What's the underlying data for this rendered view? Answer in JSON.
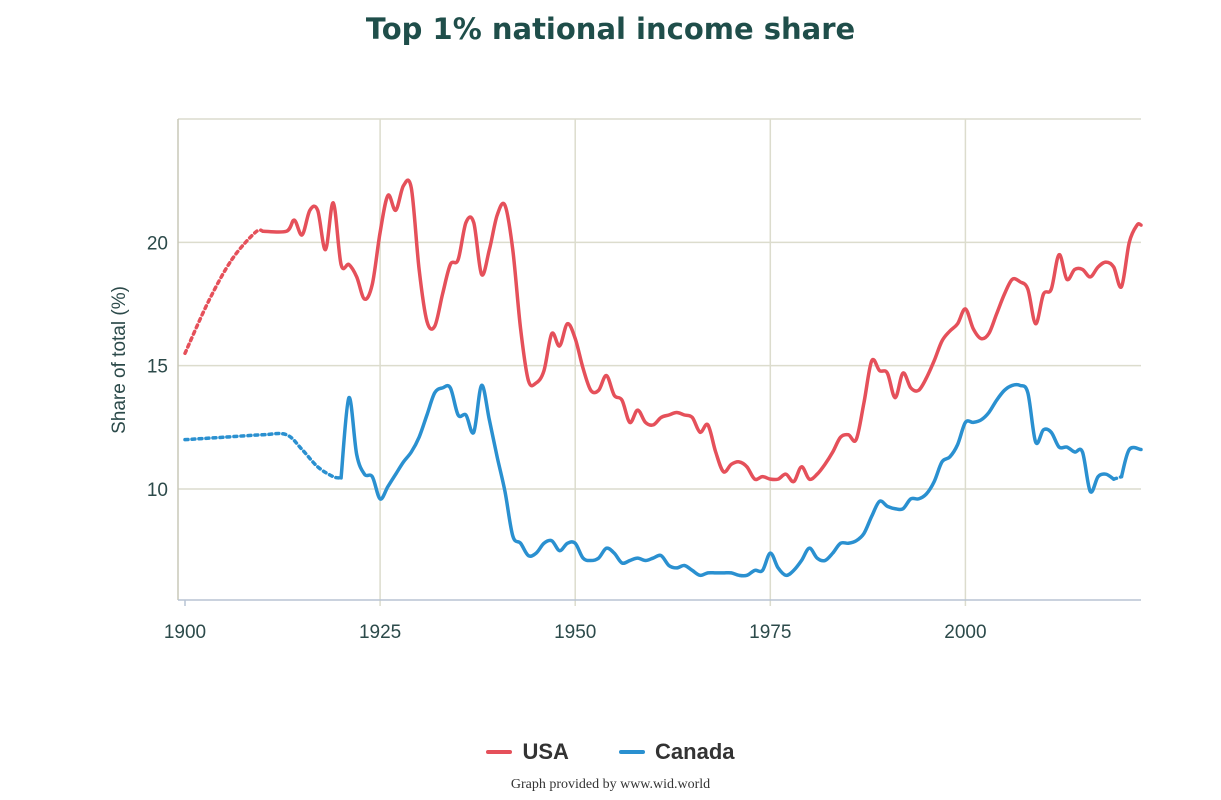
{
  "chart_data": {
    "type": "line",
    "title": "Top 1% national income share",
    "ylabel": "Share of total (%)",
    "xlabel": "",
    "xlim": [
      1900,
      2022.5
    ],
    "ylim": [
      5.5,
      25
    ],
    "x_ticks": [
      "1900",
      "1925",
      "1950",
      "1975",
      "2000"
    ],
    "y_ticks": [
      "10",
      "15",
      "20"
    ],
    "grid": true,
    "legend_position": "bottom-center",
    "series": [
      {
        "name": "USA",
        "color": "#e5505a",
        "interpolated": [
          [
            1900,
            15.5
          ],
          [
            1903,
            17.6
          ],
          [
            1906,
            19.3
          ],
          [
            1909,
            20.4
          ],
          [
            1910,
            20.45
          ]
        ],
        "points": [
          [
            1910,
            20.45
          ],
          [
            1913,
            20.45
          ],
          [
            1914,
            20.9
          ],
          [
            1915,
            20.3
          ],
          [
            1916,
            21.3
          ],
          [
            1917,
            21.3
          ],
          [
            1918,
            19.7
          ],
          [
            1919,
            21.6
          ],
          [
            1920,
            19.1
          ],
          [
            1921,
            19.1
          ],
          [
            1922,
            18.6
          ],
          [
            1923,
            17.7
          ],
          [
            1924,
            18.3
          ],
          [
            1925,
            20.4
          ],
          [
            1926,
            21.9
          ],
          [
            1927,
            21.3
          ],
          [
            1928,
            22.3
          ],
          [
            1929,
            22.2
          ],
          [
            1930,
            18.9
          ],
          [
            1931,
            16.8
          ],
          [
            1932,
            16.6
          ],
          [
            1933,
            17.9
          ],
          [
            1934,
            19.1
          ],
          [
            1935,
            19.3
          ],
          [
            1936,
            20.8
          ],
          [
            1937,
            20.8
          ],
          [
            1938,
            18.7
          ],
          [
            1939,
            19.7
          ],
          [
            1940,
            21.1
          ],
          [
            1941,
            21.5
          ],
          [
            1942,
            19.7
          ],
          [
            1943,
            16.5
          ],
          [
            1944,
            14.4
          ],
          [
            1945,
            14.3
          ],
          [
            1946,
            14.8
          ],
          [
            1947,
            16.3
          ],
          [
            1948,
            15.8
          ],
          [
            1949,
            16.7
          ],
          [
            1950,
            16.1
          ],
          [
            1951,
            14.9
          ],
          [
            1952,
            14.0
          ],
          [
            1953,
            14.0
          ],
          [
            1954,
            14.6
          ],
          [
            1955,
            13.8
          ],
          [
            1956,
            13.6
          ],
          [
            1957,
            12.7
          ],
          [
            1958,
            13.2
          ],
          [
            1959,
            12.7
          ],
          [
            1960,
            12.6
          ],
          [
            1961,
            12.9
          ],
          [
            1962,
            13.0
          ],
          [
            1963,
            13.1
          ],
          [
            1964,
            13.0
          ],
          [
            1965,
            12.9
          ],
          [
            1966,
            12.3
          ],
          [
            1967,
            12.6
          ],
          [
            1968,
            11.5
          ],
          [
            1969,
            10.7
          ],
          [
            1970,
            11.0
          ],
          [
            1971,
            11.1
          ],
          [
            1972,
            10.9
          ],
          [
            1973,
            10.4
          ],
          [
            1974,
            10.5
          ],
          [
            1975,
            10.4
          ],
          [
            1976,
            10.4
          ],
          [
            1977,
            10.6
          ],
          [
            1978,
            10.3
          ],
          [
            1979,
            10.9
          ],
          [
            1980,
            10.4
          ],
          [
            1981,
            10.6
          ],
          [
            1982,
            11.0
          ],
          [
            1983,
            11.5
          ],
          [
            1984,
            12.1
          ],
          [
            1985,
            12.2
          ],
          [
            1986,
            12.0
          ],
          [
            1987,
            13.5
          ],
          [
            1988,
            15.2
          ],
          [
            1989,
            14.8
          ],
          [
            1990,
            14.7
          ],
          [
            1991,
            13.7
          ],
          [
            1992,
            14.7
          ],
          [
            1993,
            14.1
          ],
          [
            1994,
            14.0
          ],
          [
            1995,
            14.5
          ],
          [
            1996,
            15.2
          ],
          [
            1997,
            16.0
          ],
          [
            1998,
            16.4
          ],
          [
            1999,
            16.7
          ],
          [
            2000,
            17.3
          ],
          [
            2001,
            16.5
          ],
          [
            2002,
            16.1
          ],
          [
            2003,
            16.3
          ],
          [
            2004,
            17.1
          ],
          [
            2005,
            17.9
          ],
          [
            2006,
            18.5
          ],
          [
            2007,
            18.4
          ],
          [
            2008,
            18.1
          ],
          [
            2009,
            16.7
          ],
          [
            2010,
            17.9
          ],
          [
            2011,
            18.1
          ],
          [
            2012,
            19.5
          ],
          [
            2013,
            18.5
          ],
          [
            2014,
            18.9
          ],
          [
            2015,
            18.9
          ],
          [
            2016,
            18.6
          ],
          [
            2017,
            19.0
          ],
          [
            2018,
            19.2
          ],
          [
            2019,
            19.0
          ],
          [
            2020,
            18.2
          ],
          [
            2021,
            20.0
          ],
          [
            2022,
            20.7
          ],
          [
            2022.5,
            20.7
          ]
        ]
      },
      {
        "name": "Canada",
        "color": "#2a90d0",
        "interpolated": [
          [
            1900,
            12.0
          ],
          [
            1905,
            12.1
          ],
          [
            1910,
            12.2
          ],
          [
            1913,
            12.2
          ],
          [
            1915,
            11.6
          ],
          [
            1917,
            10.9
          ],
          [
            1919,
            10.5
          ],
          [
            1920,
            10.45
          ]
        ],
        "points": [
          [
            1920,
            10.45
          ],
          [
            1921,
            13.7
          ],
          [
            1922,
            11.4
          ],
          [
            1923,
            10.6
          ],
          [
            1924,
            10.5
          ],
          [
            1925,
            9.6
          ],
          [
            1926,
            10.1
          ],
          [
            1927,
            10.6
          ],
          [
            1928,
            11.1
          ],
          [
            1929,
            11.5
          ],
          [
            1930,
            12.1
          ],
          [
            1931,
            13.0
          ],
          [
            1932,
            13.9
          ],
          [
            1933,
            14.1
          ],
          [
            1934,
            14.1
          ],
          [
            1935,
            13.0
          ],
          [
            1936,
            13.0
          ],
          [
            1937,
            12.3
          ],
          [
            1938,
            14.2
          ],
          [
            1939,
            12.8
          ],
          [
            1940,
            11.3
          ],
          [
            1941,
            9.9
          ],
          [
            1942,
            8.1
          ],
          [
            1943,
            7.8
          ],
          [
            1944,
            7.3
          ],
          [
            1945,
            7.4
          ],
          [
            1946,
            7.8
          ],
          [
            1947,
            7.9
          ],
          [
            1948,
            7.5
          ],
          [
            1949,
            7.8
          ],
          [
            1950,
            7.8
          ],
          [
            1951,
            7.2
          ],
          [
            1952,
            7.1
          ],
          [
            1953,
            7.2
          ],
          [
            1954,
            7.6
          ],
          [
            1955,
            7.4
          ],
          [
            1956,
            7.0
          ],
          [
            1957,
            7.1
          ],
          [
            1958,
            7.2
          ],
          [
            1959,
            7.1
          ],
          [
            1960,
            7.2
          ],
          [
            1961,
            7.3
          ],
          [
            1962,
            6.9
          ],
          [
            1963,
            6.8
          ],
          [
            1964,
            6.9
          ],
          [
            1965,
            6.7
          ],
          [
            1966,
            6.5
          ],
          [
            1967,
            6.6
          ],
          [
            1968,
            6.6
          ],
          [
            1969,
            6.6
          ],
          [
            1970,
            6.6
          ],
          [
            1971,
            6.5
          ],
          [
            1972,
            6.5
          ],
          [
            1973,
            6.7
          ],
          [
            1974,
            6.7
          ],
          [
            1975,
            7.4
          ],
          [
            1976,
            6.8
          ],
          [
            1977,
            6.5
          ],
          [
            1978,
            6.7
          ],
          [
            1979,
            7.1
          ],
          [
            1980,
            7.6
          ],
          [
            1981,
            7.2
          ],
          [
            1982,
            7.1
          ],
          [
            1983,
            7.4
          ],
          [
            1984,
            7.8
          ],
          [
            1985,
            7.8
          ],
          [
            1986,
            7.9
          ],
          [
            1987,
            8.2
          ],
          [
            1988,
            8.9
          ],
          [
            1989,
            9.5
          ],
          [
            1990,
            9.3
          ],
          [
            1991,
            9.2
          ],
          [
            1992,
            9.2
          ],
          [
            1993,
            9.6
          ],
          [
            1994,
            9.6
          ],
          [
            1995,
            9.8
          ],
          [
            1996,
            10.3
          ],
          [
            1997,
            11.1
          ],
          [
            1998,
            11.3
          ],
          [
            1999,
            11.8
          ],
          [
            2000,
            12.7
          ],
          [
            2001,
            12.7
          ],
          [
            2002,
            12.8
          ],
          [
            2003,
            13.1
          ],
          [
            2004,
            13.6
          ],
          [
            2005,
            14.0
          ],
          [
            2006,
            14.2
          ],
          [
            2007,
            14.2
          ],
          [
            2008,
            13.9
          ],
          [
            2009,
            11.9
          ],
          [
            2010,
            12.4
          ],
          [
            2011,
            12.3
          ],
          [
            2012,
            11.7
          ],
          [
            2013,
            11.7
          ],
          [
            2014,
            11.5
          ],
          [
            2015,
            11.5
          ],
          [
            2016,
            9.9
          ],
          [
            2017,
            10.5
          ],
          [
            2018,
            10.6
          ],
          [
            2019,
            10.4
          ]
        ],
        "interpolated_end": [
          [
            2019,
            10.4
          ],
          [
            2020,
            10.5
          ],
          [
            2021,
            11.6
          ],
          [
            2022.5,
            11.6
          ]
        ]
      }
    ]
  },
  "legend": [
    {
      "label": "USA",
      "color": "#e5505a"
    },
    {
      "label": "Canada",
      "color": "#2a90d0"
    }
  ],
  "credit": "Graph provided by www.wid.world"
}
